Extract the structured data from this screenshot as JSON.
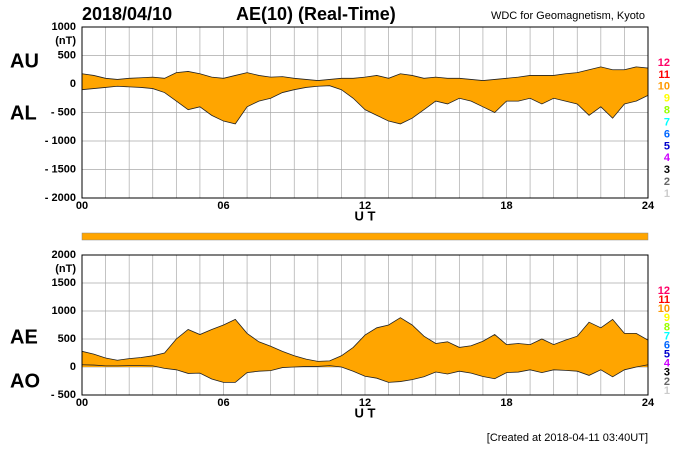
{
  "header": {
    "date": "2018/04/10",
    "title": "AE(10) (Real-Time)",
    "source": "WDC for Geomagnetism, Kyoto",
    "created": "[Created at 2018-04-11 03:40UT]"
  },
  "chart_data": [
    {
      "type": "area",
      "ylabel": "(nT)",
      "xlabel": "U T",
      "x": [
        0,
        0.5,
        1,
        1.5,
        2,
        2.5,
        3,
        3.5,
        4,
        4.5,
        5,
        5.5,
        6,
        6.5,
        7,
        7.5,
        8,
        8.5,
        9,
        9.5,
        10,
        10.5,
        11,
        11.5,
        12,
        12.5,
        13,
        13.5,
        14,
        14.5,
        15,
        15.5,
        16,
        16.5,
        17,
        17.5,
        18,
        18.5,
        19,
        19.5,
        20,
        20.5,
        21,
        21.5,
        22,
        22.5,
        23,
        23.5,
        24
      ],
      "series": [
        {
          "name": "AU",
          "color": "#ffa500",
          "values": [
            180,
            150,
            100,
            80,
            100,
            110,
            120,
            100,
            200,
            220,
            180,
            120,
            100,
            150,
            200,
            150,
            120,
            130,
            100,
            80,
            60,
            80,
            100,
            100,
            120,
            150,
            100,
            180,
            150,
            100,
            120,
            100,
            100,
            80,
            60,
            80,
            100,
            120,
            150,
            150,
            150,
            180,
            200,
            250,
            300,
            250,
            250,
            300,
            280
          ]
        },
        {
          "name": "AL",
          "color": "#ffa500",
          "values": [
            -100,
            -80,
            -60,
            -40,
            -50,
            -60,
            -80,
            -150,
            -300,
            -450,
            -400,
            -550,
            -650,
            -700,
            -400,
            -300,
            -250,
            -150,
            -100,
            -60,
            -40,
            -30,
            -100,
            -250,
            -450,
            -550,
            -650,
            -700,
            -600,
            -450,
            -300,
            -350,
            -250,
            -300,
            -400,
            -500,
            -300,
            -300,
            -250,
            -350,
            -250,
            -300,
            -350,
            -550,
            -400,
            -600,
            -350,
            -300,
            -200
          ]
        }
      ],
      "xlim": [
        0,
        24
      ],
      "xticks": [
        {
          "value": 0,
          "label": "00"
        },
        {
          "value": 6,
          "label": "06"
        },
        12,
        18,
        24
      ],
      "xgrid": [
        0,
        1,
        2,
        3,
        4,
        5,
        6,
        7,
        8,
        9,
        10,
        11,
        12,
        13,
        14,
        15,
        16,
        17,
        18,
        19,
        20,
        21,
        22,
        23,
        24
      ],
      "ylim": [
        -2000,
        1000
      ],
      "yticks": [
        1000,
        500,
        0,
        {
          "value": -500,
          "label": "- 500"
        },
        {
          "value": -1000,
          "label": "- 1000"
        },
        {
          "value": -1500,
          "label": "- 1500"
        },
        {
          "value": -2000,
          "label": "- 2000"
        }
      ],
      "grid": true,
      "station_legend": [
        {
          "label": "12",
          "color": "#ff0066"
        },
        {
          "label": "11",
          "color": "#ff0000"
        },
        {
          "label": "10",
          "color": "#ff9900"
        },
        {
          "label": "9",
          "color": "#ffff00"
        },
        {
          "label": "8",
          "color": "#99ff00"
        },
        {
          "label": "7",
          "color": "#00ffff"
        },
        {
          "label": "6",
          "color": "#0066ff"
        },
        {
          "label": "5",
          "color": "#0000cc"
        },
        {
          "label": "4",
          "color": "#cc00ff"
        },
        {
          "label": "3",
          "color": "#000000"
        },
        {
          "label": "2",
          "color": "#666666"
        },
        {
          "label": "1",
          "color": "#cccccc"
        }
      ]
    },
    {
      "type": "area",
      "ylabel": "(nT)",
      "xlabel": "U T",
      "x": [
        0,
        0.5,
        1,
        1.5,
        2,
        2.5,
        3,
        3.5,
        4,
        4.5,
        5,
        5.5,
        6,
        6.5,
        7,
        7.5,
        8,
        8.5,
        9,
        9.5,
        10,
        10.5,
        11,
        11.5,
        12,
        12.5,
        13,
        13.5,
        14,
        14.5,
        15,
        15.5,
        16,
        16.5,
        17,
        17.5,
        18,
        18.5,
        19,
        19.5,
        20,
        20.5,
        21,
        21.5,
        22,
        22.5,
        23,
        23.5,
        24
      ],
      "series": [
        {
          "name": "AE",
          "color": "#ffa500",
          "values": [
            280,
            230,
            160,
            120,
            150,
            170,
            200,
            250,
            500,
            670,
            580,
            670,
            750,
            850,
            600,
            450,
            370,
            280,
            200,
            140,
            100,
            110,
            200,
            350,
            570,
            700,
            750,
            880,
            750,
            550,
            420,
            450,
            350,
            380,
            460,
            580,
            400,
            420,
            400,
            500,
            400,
            480,
            550,
            800,
            700,
            850,
            600,
            600,
            480
          ]
        },
        {
          "name": "AO",
          "color": "#ffa500",
          "values": [
            40,
            35,
            20,
            20,
            25,
            25,
            20,
            -25,
            -50,
            -115,
            -110,
            -215,
            -275,
            -275,
            -100,
            -75,
            -65,
            -10,
            0,
            10,
            10,
            25,
            0,
            -75,
            -165,
            -200,
            -275,
            -260,
            -225,
            -175,
            -90,
            -125,
            -75,
            -110,
            -170,
            -210,
            -100,
            -90,
            -50,
            -100,
            -50,
            -60,
            -75,
            -150,
            -50,
            -175,
            -50,
            0,
            40
          ]
        }
      ],
      "xlim": [
        0,
        24
      ],
      "xticks": [
        {
          "value": 0,
          "label": "00"
        },
        {
          "value": 6,
          "label": "06"
        },
        12,
        18,
        24
      ],
      "xgrid": [
        0,
        1,
        2,
        3,
        4,
        5,
        6,
        7,
        8,
        9,
        10,
        11,
        12,
        13,
        14,
        15,
        16,
        17,
        18,
        19,
        20,
        21,
        22,
        23,
        24
      ],
      "ylim": [
        -500,
        2000
      ],
      "yticks": [
        2000,
        1500,
        1000,
        500,
        0,
        {
          "value": -500,
          "label": "- 500"
        }
      ],
      "grid": true,
      "station_legend": [
        {
          "label": "12",
          "color": "#ff0066"
        },
        {
          "label": "11",
          "color": "#ff0000"
        },
        {
          "label": "10",
          "color": "#ff9900"
        },
        {
          "label": "9",
          "color": "#ffff00"
        },
        {
          "label": "8",
          "color": "#99ff00"
        },
        {
          "label": "7",
          "color": "#00ffff"
        },
        {
          "label": "6",
          "color": "#0066ff"
        },
        {
          "label": "5",
          "color": "#0000cc"
        },
        {
          "label": "4",
          "color": "#cc00ff"
        },
        {
          "label": "3",
          "color": "#000000"
        },
        {
          "label": "2",
          "color": "#666666"
        },
        {
          "label": "1",
          "color": "#cccccc"
        }
      ]
    }
  ]
}
